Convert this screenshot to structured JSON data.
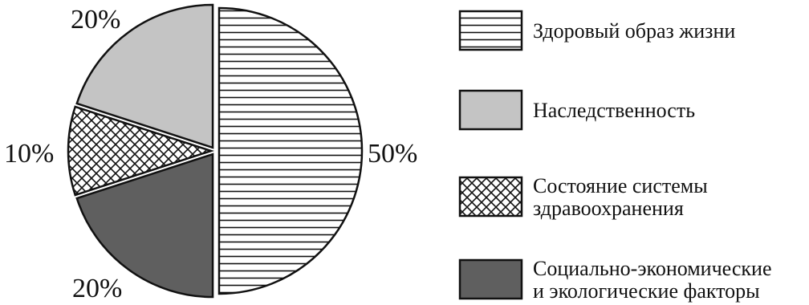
{
  "chart_data": {
    "type": "pie",
    "title": "",
    "slices": [
      {
        "label": "Здоровый образ жизни",
        "value": 50,
        "value_label": "50%",
        "pattern": "horizontal-stripes",
        "fill": "#ffffff"
      },
      {
        "label": "Социально-экономические и экологические факторы",
        "value": 20,
        "value_label": "20%",
        "pattern": "solid",
        "fill": "#5f5f5f"
      },
      {
        "label": "Состояние системы здравоохранения",
        "value": 10,
        "value_label": "10%",
        "pattern": "crosshatch",
        "fill": "#ffffff"
      },
      {
        "label": "Наследственность",
        "value": 20,
        "value_label": "20%",
        "pattern": "solid",
        "fill": "#c4c4c4"
      }
    ],
    "legend": {
      "placement": "right",
      "items": [
        {
          "lines": [
            "Здоровый образ жизни"
          ],
          "pattern": "horizontal-stripes",
          "fill": "#ffffff"
        },
        {
          "lines": [
            "Наследственность"
          ],
          "pattern": "solid",
          "fill": "#c4c4c4"
        },
        {
          "lines": [
            "Состояние системы",
            "здравоохранения"
          ],
          "pattern": "crosshatch",
          "fill": "#ffffff"
        },
        {
          "lines": [
            "Социально-экономические",
            "и экологические факторы"
          ],
          "pattern": "solid",
          "fill": "#5f5f5f"
        }
      ]
    },
    "stroke_color": "#111111"
  }
}
